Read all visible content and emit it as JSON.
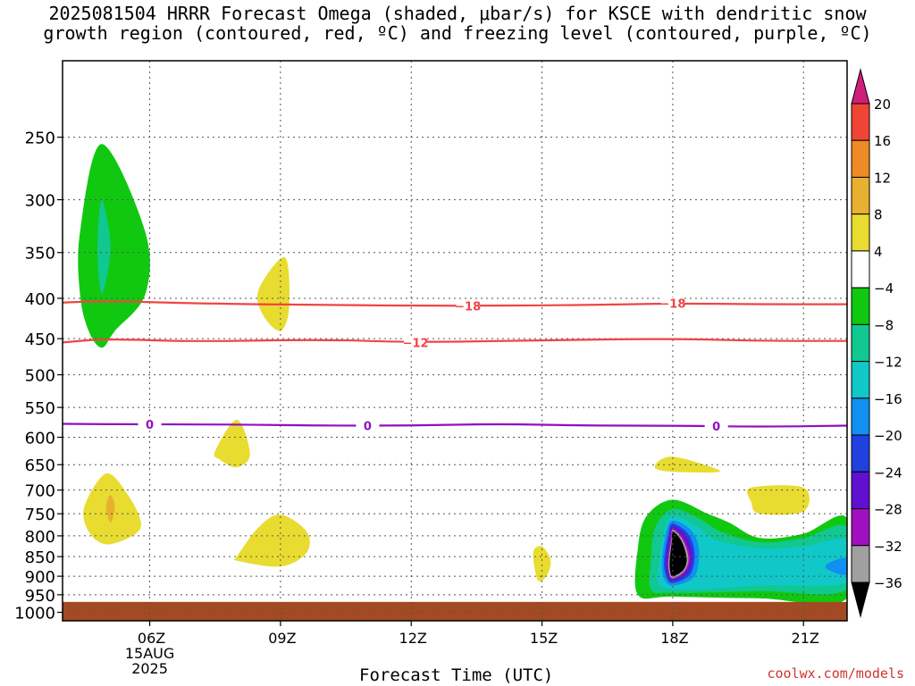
{
  "title_line1": "2025081504 HRRR Forecast Omega (shaded, μbar/s) for KSCE with dendritic snow",
  "title_line2": "growth region (contoured, red, ºC) and freezing level (contoured, purple, ºC)",
  "credit": "coolwx.com/models",
  "chart_data": {
    "type": "heatmap",
    "title": "2025081504 HRRR Forecast Omega (shaded, μbar/s) for KSCE with dendritic snow growth region (contoured, red, ºC) and freezing level (contoured, purple, ºC)",
    "xlabel": "Forecast Time (UTC)",
    "ylabel": "",
    "x_ticks": [
      {
        "hour": 6,
        "label": "06Z",
        "sub1": "15AUG",
        "sub2": "2025"
      },
      {
        "hour": 9,
        "label": "09Z"
      },
      {
        "hour": 12,
        "label": "12Z"
      },
      {
        "hour": 15,
        "label": "15Z"
      },
      {
        "hour": 18,
        "label": "18Z"
      },
      {
        "hour": 21,
        "label": "21Z"
      }
    ],
    "xlim": [
      4,
      22
    ],
    "y_ticks": [
      250,
      300,
      350,
      400,
      450,
      500,
      550,
      600,
      650,
      700,
      750,
      800,
      850,
      900,
      950,
      1000
    ],
    "ylim": [
      200,
      1025
    ],
    "y_scale": "log",
    "colorbar": {
      "labels": [
        "20",
        "16",
        "12",
        "8",
        "4",
        "−4",
        "−8",
        "−12",
        "−16",
        "−20",
        "−24",
        "−28",
        "−32",
        "−36"
      ],
      "colors": [
        "#d01f7a",
        "#f04434",
        "#f08a24",
        "#e8b030",
        "#e8dc30",
        "#ffffff",
        "#10c810",
        "#10c890",
        "#10c8c8",
        "#1090f0",
        "#2040e0",
        "#6010d0",
        "#a010c0",
        "#a0a0a0",
        "#000000"
      ]
    },
    "contours": [
      {
        "value": -18,
        "label": "−18",
        "color": "#f04444",
        "points": [
          [
            4,
            405
          ],
          [
            5,
            403
          ],
          [
            7,
            406
          ],
          [
            10,
            408
          ],
          [
            13,
            409
          ],
          [
            16,
            408
          ],
          [
            18,
            406
          ],
          [
            20,
            407
          ],
          [
            22,
            407
          ]
        ],
        "label_hours": [
          13.3,
          18
        ]
      },
      {
        "value": -12,
        "label": "−12",
        "color": "#f04444",
        "points": [
          [
            4,
            455
          ],
          [
            5,
            450
          ],
          [
            7,
            454
          ],
          [
            10,
            451
          ],
          [
            12,
            455
          ],
          [
            15,
            452
          ],
          [
            18,
            450
          ],
          [
            20,
            453
          ],
          [
            22,
            453
          ]
        ],
        "label_hours": [
          12.1
        ]
      },
      {
        "value": 0,
        "label": "0",
        "color": "#9010c0",
        "points": [
          [
            4,
            577
          ],
          [
            6,
            578
          ],
          [
            8,
            578
          ],
          [
            10,
            580
          ],
          [
            12,
            580
          ],
          [
            14,
            577
          ],
          [
            16,
            580
          ],
          [
            18,
            580
          ],
          [
            20,
            582
          ],
          [
            22,
            580
          ]
        ],
        "label_hours": [
          6,
          11,
          19
        ]
      }
    ],
    "shaded_regions": [
      {
        "range": "-8 to -4",
        "color": "#10c810",
        "points": [
          [
            4.4,
            330
          ],
          [
            4.9,
            255
          ],
          [
            5.9,
            330
          ],
          [
            5.9,
            395
          ],
          [
            5.2,
            440
          ],
          [
            4.9,
            462
          ],
          [
            4.6,
            440
          ],
          [
            4.4,
            395
          ]
        ]
      },
      {
        "range": "-12 to -8",
        "color": "#10c890",
        "points": [
          [
            4.8,
            345
          ],
          [
            4.9,
            300
          ],
          [
            5.1,
            345
          ],
          [
            4.9,
            395
          ]
        ]
      },
      {
        "range": "4 to 8",
        "color": "#e8dc30",
        "points": [
          [
            8.5,
            390
          ],
          [
            9.1,
            355
          ],
          [
            9.2,
            410
          ],
          [
            9.0,
            440
          ],
          [
            8.6,
            420
          ]
        ]
      },
      {
        "range": "4 to 8",
        "color": "#e8dc30",
        "points": [
          [
            7.5,
            625
          ],
          [
            8.0,
            570
          ],
          [
            8.3,
            630
          ],
          [
            8.0,
            655
          ],
          [
            7.6,
            640
          ]
        ]
      },
      {
        "range": "4 to 8",
        "color": "#e8dc30",
        "points": [
          [
            4.5,
            735
          ],
          [
            5.0,
            667
          ],
          [
            5.5,
            710
          ],
          [
            5.8,
            770
          ],
          [
            5.6,
            800
          ],
          [
            5.0,
            820
          ],
          [
            4.6,
            790
          ]
        ]
      },
      {
        "range": "8 to 12",
        "color": "#e8b030",
        "points": [
          [
            5.0,
            735
          ],
          [
            5.1,
            710
          ],
          [
            5.2,
            735
          ],
          [
            5.1,
            770
          ]
        ]
      },
      {
        "range": "4 to 8",
        "color": "#e8dc30",
        "points": [
          [
            8.0,
            850
          ],
          [
            8.5,
            780
          ],
          [
            9.0,
            752
          ],
          [
            9.6,
            790
          ],
          [
            9.6,
            840
          ],
          [
            9.0,
            875
          ],
          [
            8.0,
            860
          ]
        ]
      },
      {
        "range": "4 to 8",
        "color": "#e8dc30",
        "points": [
          [
            14.8,
            840
          ],
          [
            15.0,
            825
          ],
          [
            15.2,
            860
          ],
          [
            15.1,
            900
          ],
          [
            14.9,
            910
          ]
        ]
      },
      {
        "range": "4 to 8",
        "color": "#e8dc30",
        "points": [
          [
            17.6,
            650
          ],
          [
            18.0,
            635
          ],
          [
            19.0,
            658
          ],
          [
            18.9,
            665
          ],
          [
            17.8,
            662
          ]
        ]
      },
      {
        "range": "4 to 8",
        "color": "#e8dc30",
        "points": [
          [
            19.8,
            695
          ],
          [
            21.0,
            695
          ],
          [
            21.0,
            745
          ],
          [
            20.0,
            750
          ],
          [
            19.8,
            725
          ]
        ]
      },
      {
        "range": "-8 to -4",
        "color": "#10c810",
        "points": [
          [
            17.2,
            830
          ],
          [
            17.4,
            755
          ],
          [
            18.0,
            720
          ],
          [
            18.8,
            750
          ],
          [
            19.3,
            770
          ],
          [
            20.0,
            805
          ],
          [
            21.0,
            795
          ],
          [
            22.0,
            760
          ],
          [
            22.0,
            960
          ],
          [
            20.0,
            960
          ],
          [
            18.0,
            955
          ],
          [
            17.2,
            950
          ]
        ]
      },
      {
        "range": "-12 to -8",
        "color": "#10c890",
        "points": [
          [
            17.5,
            860
          ],
          [
            17.6,
            780
          ],
          [
            18.0,
            740
          ],
          [
            18.6,
            760
          ],
          [
            19.1,
            790
          ],
          [
            20.0,
            815
          ],
          [
            21.0,
            805
          ],
          [
            22.0,
            780
          ],
          [
            22.0,
            935
          ],
          [
            20.0,
            940
          ],
          [
            18.0,
            945
          ],
          [
            17.5,
            935
          ]
        ]
      },
      {
        "range": "-16 to -12",
        "color": "#10c8c8",
        "points": [
          [
            17.7,
            860
          ],
          [
            17.8,
            790
          ],
          [
            18.0,
            755
          ],
          [
            18.6,
            780
          ],
          [
            19.0,
            810
          ],
          [
            20.0,
            830
          ],
          [
            21.0,
            825
          ],
          [
            22.0,
            810
          ],
          [
            22.0,
            915
          ],
          [
            20.0,
            925
          ],
          [
            18.5,
            935
          ],
          [
            17.7,
            925
          ]
        ]
      },
      {
        "range": "-20 to -16",
        "color": "#1090f0",
        "points": [
          [
            21.5,
            875
          ],
          [
            21.7,
            860
          ],
          [
            22.0,
            855
          ],
          [
            22.0,
            895
          ],
          [
            21.7,
            890
          ]
        ]
      },
      {
        "range": "-20 to -16",
        "color": "#1090f0",
        "points": [
          [
            17.75,
            860
          ],
          [
            17.85,
            790
          ],
          [
            18.0,
            765
          ],
          [
            18.4,
            785
          ],
          [
            18.6,
            830
          ],
          [
            18.5,
            900
          ],
          [
            18.0,
            925
          ],
          [
            17.8,
            905
          ]
        ]
      },
      {
        "range": "-24 to -20",
        "color": "#2040e0",
        "points": [
          [
            17.8,
            860
          ],
          [
            17.9,
            795
          ],
          [
            18.0,
            772
          ],
          [
            18.35,
            795
          ],
          [
            18.5,
            840
          ],
          [
            18.4,
            895
          ],
          [
            18.0,
            918
          ],
          [
            17.85,
            900
          ]
        ]
      },
      {
        "range": "-28 to -24",
        "color": "#6010d0",
        "points": [
          [
            17.85,
            860
          ],
          [
            17.92,
            800
          ],
          [
            18.0,
            778
          ],
          [
            18.3,
            800
          ],
          [
            18.45,
            845
          ],
          [
            18.35,
            890
          ],
          [
            18.0,
            912
          ],
          [
            17.88,
            895
          ]
        ]
      },
      {
        "range": "-32 to -28",
        "color": "#a010c0",
        "points": [
          [
            17.88,
            860
          ],
          [
            17.95,
            805
          ],
          [
            18.0,
            783
          ],
          [
            18.25,
            805
          ],
          [
            18.4,
            850
          ],
          [
            18.3,
            888
          ],
          [
            18.0,
            908
          ],
          [
            17.9,
            892
          ]
        ]
      },
      {
        "range": "-36 to -32",
        "color": "#a0a0a0",
        "points": [
          [
            17.9,
            860
          ],
          [
            17.97,
            808
          ],
          [
            18.0,
            786
          ],
          [
            18.22,
            808
          ],
          [
            18.36,
            852
          ],
          [
            18.27,
            886
          ],
          [
            18.0,
            905
          ],
          [
            17.92,
            890
          ]
        ]
      },
      {
        "range": "below -36",
        "color": "#000000",
        "points": [
          [
            17.93,
            860
          ],
          [
            17.98,
            812
          ],
          [
            18.0,
            790
          ],
          [
            18.2,
            812
          ],
          [
            18.32,
            855
          ],
          [
            18.24,
            884
          ],
          [
            18.0,
            900
          ],
          [
            17.94,
            886
          ]
        ]
      }
    ],
    "ground": {
      "color": "#a44a22",
      "top_pressure": 970
    }
  }
}
